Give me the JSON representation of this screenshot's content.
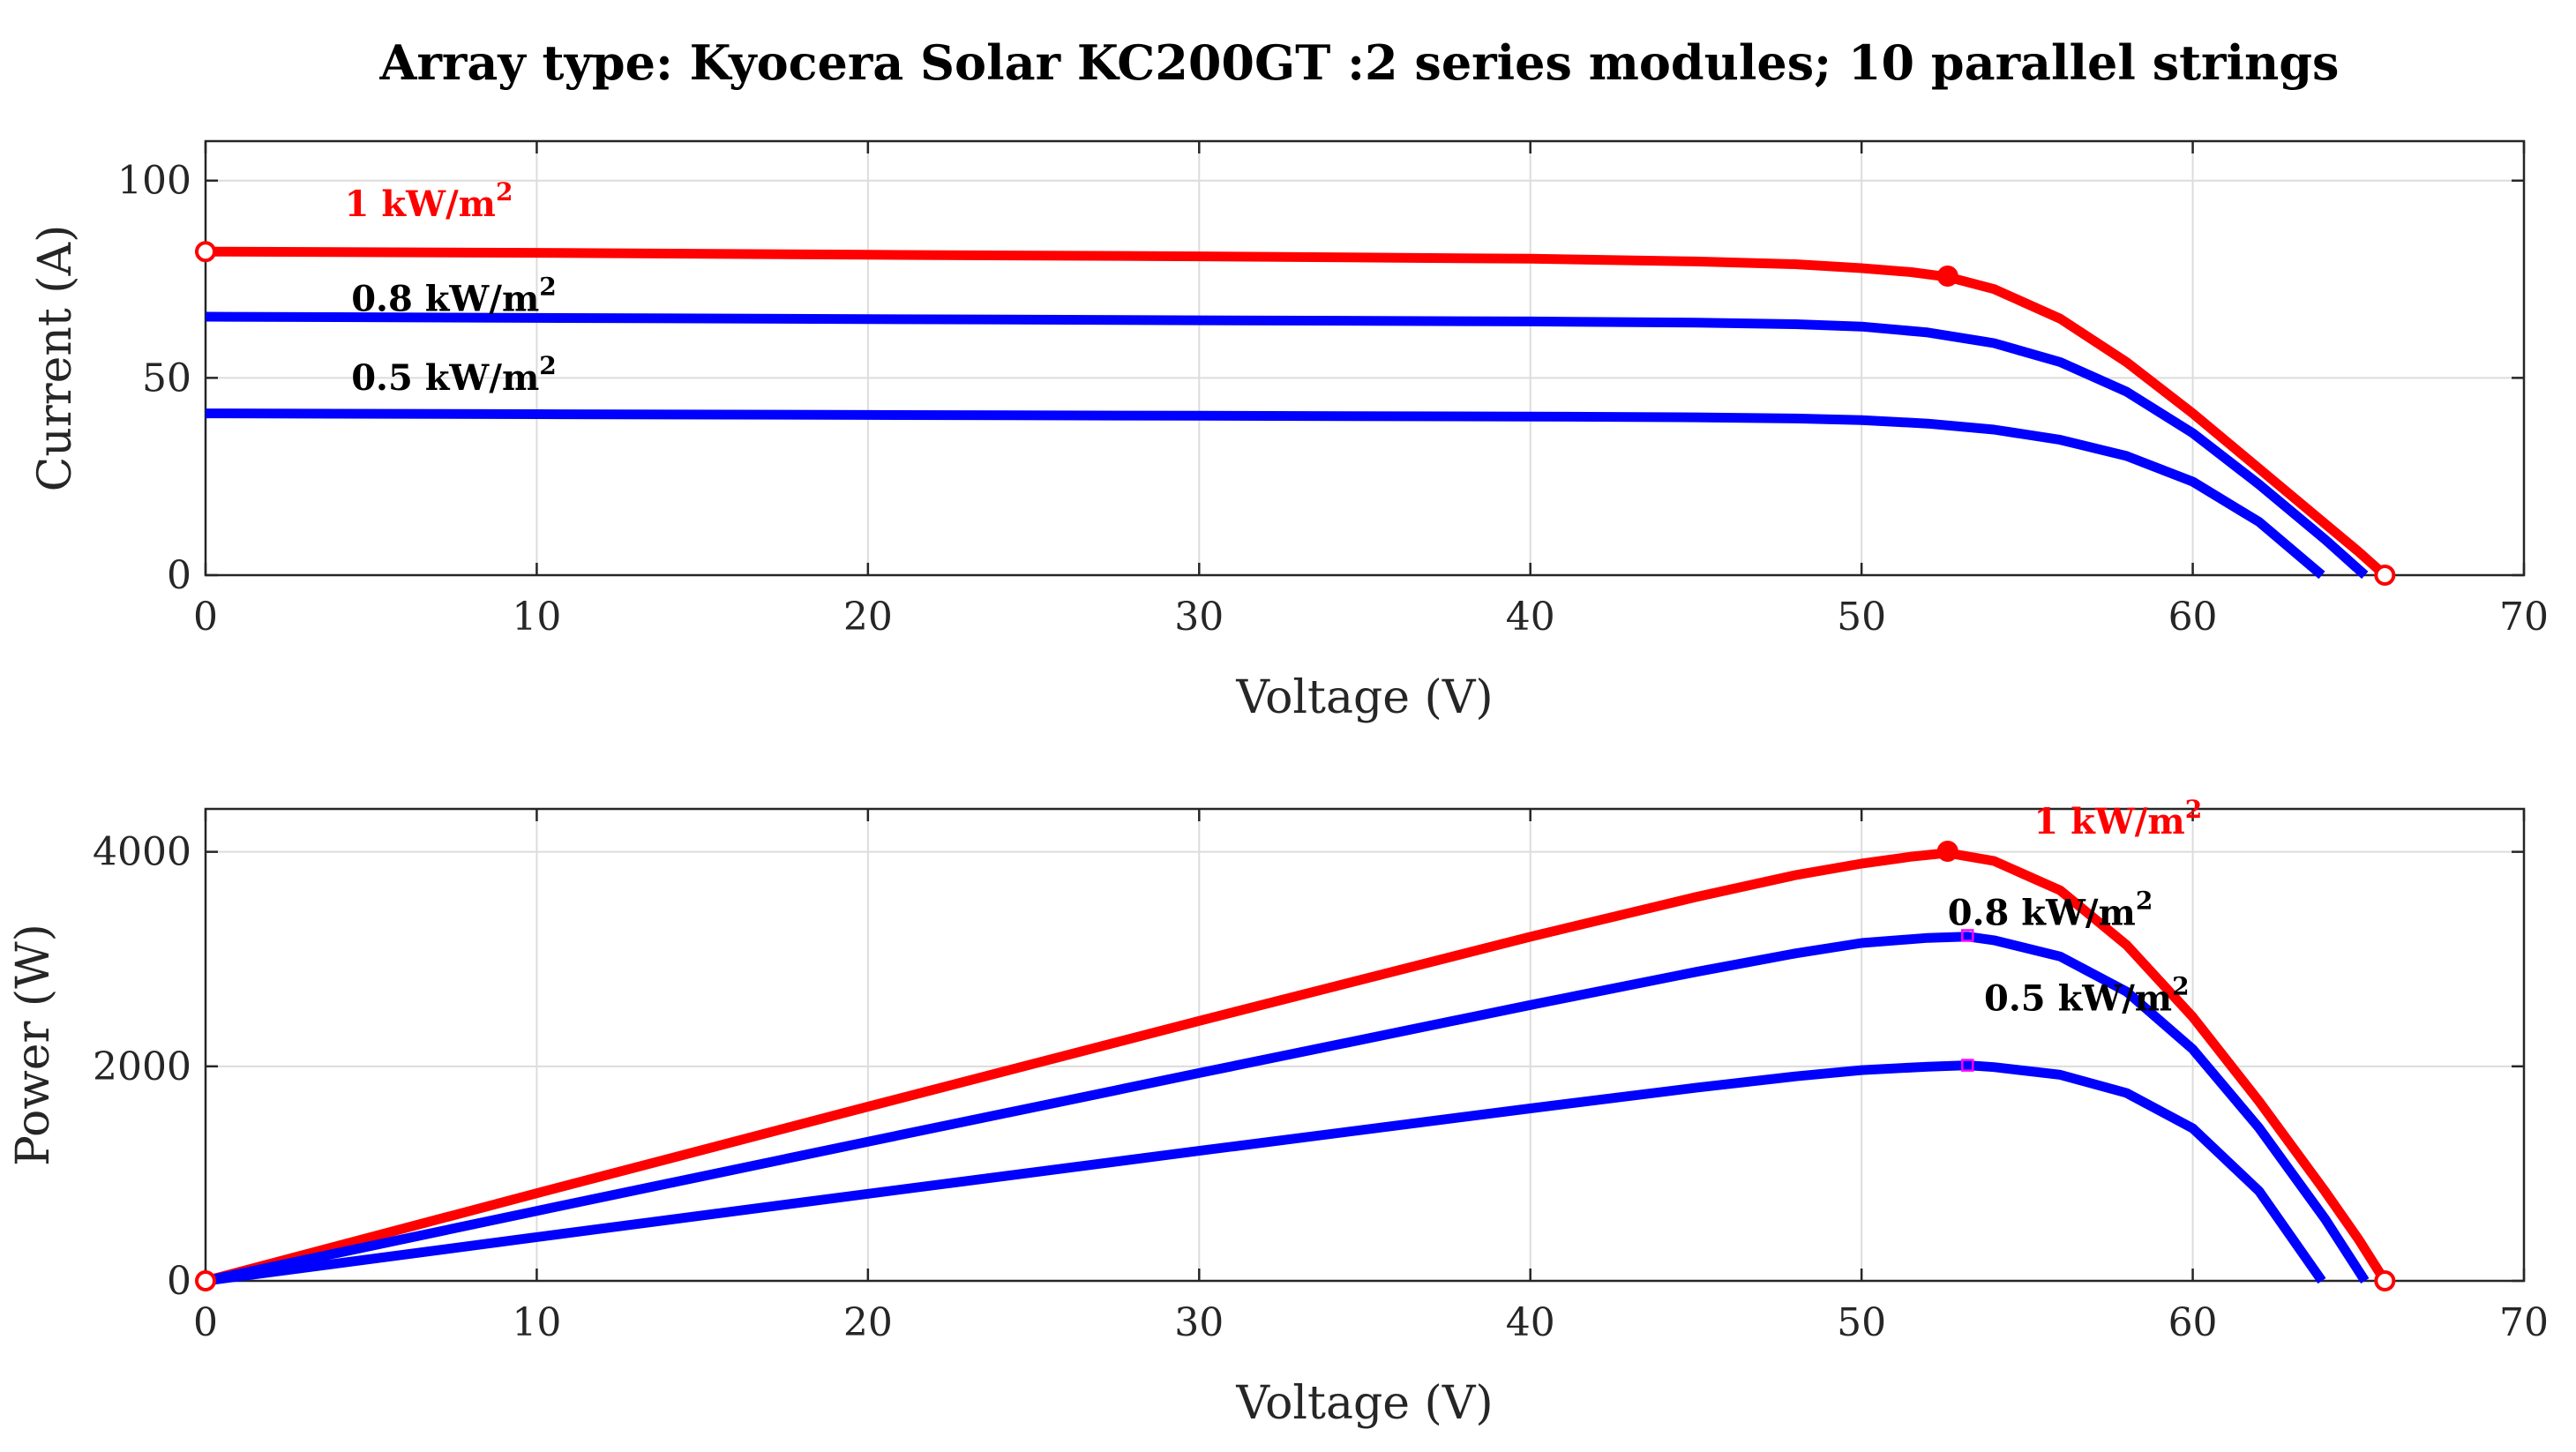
{
  "title": "Array type: Kyocera Solar KC200GT :2 series modules; 10 parallel strings",
  "colors": {
    "red": "#ff0000",
    "blue": "#0000ff",
    "magenta": "#ff00ff",
    "text": "#000000"
  },
  "chart_data": [
    {
      "type": "line",
      "name": "iv-curve",
      "title": "Array type: Kyocera Solar KC200GT :2 series modules; 10 parallel strings",
      "xlabel": "Voltage (V)",
      "ylabel": "Current (A)",
      "xlim": [
        0,
        70
      ],
      "ylim": [
        0,
        110
      ],
      "xticks": [
        0,
        10,
        20,
        30,
        40,
        50,
        60,
        70
      ],
      "yticks": [
        0,
        50,
        100
      ],
      "grid": true,
      "series": [
        {
          "name": "1 kW/m2",
          "color": "#ff0000",
          "x": [
            0,
            10,
            20,
            30,
            40,
            45,
            48,
            50,
            51.5,
            52.6,
            54,
            56,
            58,
            60,
            62,
            64,
            65,
            65.8
          ],
          "y": [
            82,
            81.7,
            81.2,
            80.8,
            80.2,
            79.5,
            78.8,
            77.8,
            76.8,
            75.6,
            72.5,
            65,
            54,
            41,
            27,
            13,
            6,
            0
          ]
        },
        {
          "name": "0.8 kW/m2",
          "color": "#0000ff",
          "x": [
            0,
            10,
            20,
            30,
            40,
            45,
            48,
            50,
            52,
            54,
            56,
            58,
            60,
            62,
            64,
            65.2
          ],
          "y": [
            65.5,
            65.2,
            64.9,
            64.6,
            64.3,
            64,
            63.6,
            63,
            61.5,
            58.8,
            54,
            46.5,
            36,
            23,
            9,
            0
          ]
        },
        {
          "name": "0.5 kW/m2",
          "color": "#0000ff",
          "x": [
            0,
            10,
            20,
            30,
            40,
            45,
            48,
            50,
            52,
            54,
            56,
            58,
            60,
            62,
            63.9
          ],
          "y": [
            41,
            40.8,
            40.6,
            40.4,
            40.2,
            40,
            39.7,
            39.3,
            38.4,
            36.9,
            34.3,
            30.2,
            23.7,
            13.5,
            0
          ]
        }
      ],
      "markers": [
        {
          "x": 0,
          "y": 82,
          "style": "open-circle",
          "color": "#ff0000"
        },
        {
          "x": 52.6,
          "y": 75.8,
          "style": "filled-circle",
          "color": "#ff0000"
        },
        {
          "x": 65.8,
          "y": 0,
          "style": "open-circle",
          "color": "#ff0000"
        }
      ],
      "annotations": [
        {
          "text": "1 kW/m",
          "sup": "2",
          "x": 4.2,
          "y": 91,
          "color": "#ff0000"
        },
        {
          "text": "0.8 kW/m",
          "sup": "2",
          "x": 4.4,
          "y": 67,
          "color": "#000000"
        },
        {
          "text": "0.5 kW/m",
          "sup": "2",
          "x": 4.4,
          "y": 47,
          "color": "#000000"
        }
      ]
    },
    {
      "type": "line",
      "name": "pv-curve",
      "xlabel": "Voltage (V)",
      "ylabel": "Power (W)",
      "xlim": [
        0,
        70
      ],
      "ylim": [
        0,
        4400
      ],
      "xticks": [
        0,
        10,
        20,
        30,
        40,
        50,
        60,
        70
      ],
      "yticks": [
        0,
        2000,
        4000
      ],
      "grid": true,
      "series": [
        {
          "name": "1 kW/m2",
          "color": "#ff0000",
          "x": [
            0,
            10,
            20,
            30,
            40,
            45,
            48,
            50,
            51.5,
            52.6,
            54,
            56,
            58,
            60,
            62,
            64,
            65,
            65.8
          ],
          "y": [
            0,
            817,
            1624,
            2424,
            3208,
            3578,
            3782,
            3890,
            3955,
            3990,
            3915,
            3640,
            3132,
            2460,
            1674,
            832,
            390,
            0
          ]
        },
        {
          "name": "0.8 kW/m2",
          "color": "#0000ff",
          "x": [
            0,
            10,
            20,
            30,
            40,
            45,
            48,
            50,
            52,
            53.2,
            54,
            56,
            58,
            60,
            62,
            64,
            65.2
          ],
          "y": [
            0,
            652,
            1298,
            1938,
            2572,
            2880,
            3053,
            3150,
            3198,
            3210,
            3175,
            3024,
            2697,
            2160,
            1426,
            576,
            0
          ]
        },
        {
          "name": "0.5 kW/m2",
          "color": "#0000ff",
          "x": [
            0,
            10,
            20,
            30,
            40,
            45,
            48,
            50,
            52,
            53.2,
            54,
            56,
            58,
            60,
            62,
            63.9
          ],
          "y": [
            0,
            408,
            812,
            1212,
            1608,
            1800,
            1906,
            1965,
            1997,
            2010,
            1993,
            1921,
            1752,
            1422,
            837,
            0
          ]
        }
      ],
      "markers": [
        {
          "x": 0,
          "y": 0,
          "style": "open-circle",
          "color": "#ff0000"
        },
        {
          "x": 52.6,
          "y": 4005,
          "style": "filled-circle",
          "color": "#ff0000"
        },
        {
          "x": 53.2,
          "y": 3220,
          "style": "small-open-square",
          "color": "#ff00ff"
        },
        {
          "x": 53.2,
          "y": 2010,
          "style": "small-open-square",
          "color": "#ff00ff"
        },
        {
          "x": 65.8,
          "y": 0,
          "style": "open-circle",
          "color": "#ff0000"
        }
      ],
      "annotations": [
        {
          "text": "1 kW/m",
          "sup": "2",
          "x": 55.2,
          "y": 4170,
          "color": "#ff0000"
        },
        {
          "text": "0.8 kW/m",
          "sup": "2",
          "x": 52.6,
          "y": 3320,
          "color": "#000000"
        },
        {
          "text": "0.5 kW/m",
          "sup": "2",
          "x": 53.7,
          "y": 2520,
          "color": "#000000"
        }
      ]
    }
  ]
}
